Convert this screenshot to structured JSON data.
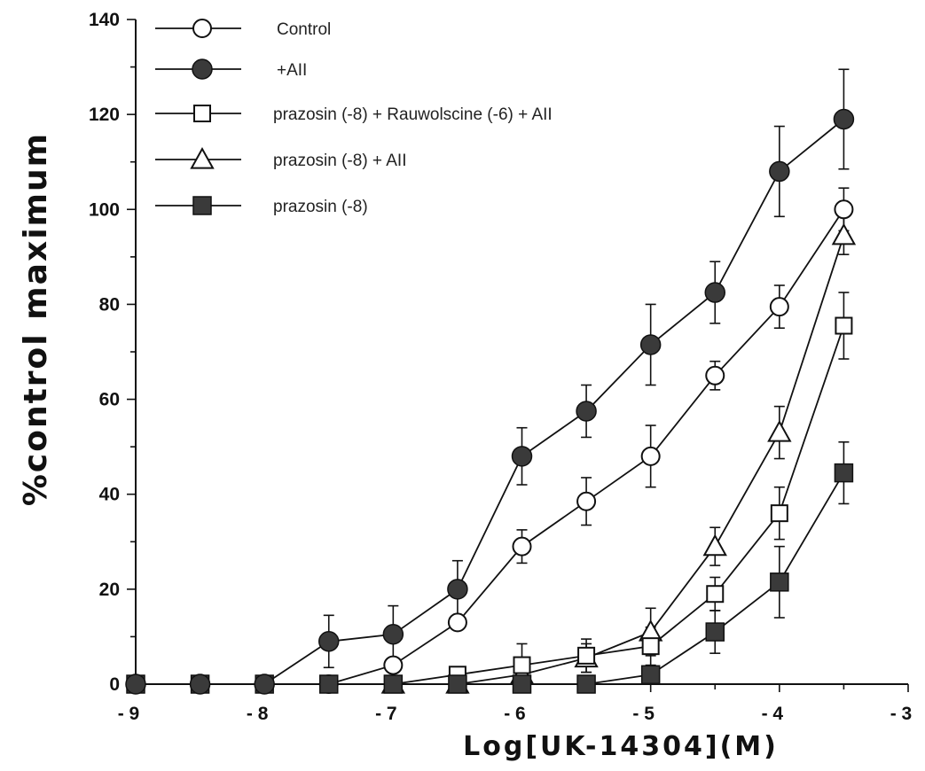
{
  "chart_data": {
    "type": "line",
    "title": "",
    "xlabel": "Log[UK-14304](M)",
    "ylabel": "%control maximum",
    "xlim": [
      -9,
      -3
    ],
    "ylim": [
      0,
      140
    ],
    "x_ticks": [
      -9,
      -8,
      -7,
      -6,
      -5,
      -4,
      -3
    ],
    "x_tick_labels": [
      "- 9",
      "- 8",
      "- 7",
      "- 6",
      "- 5",
      "- 4",
      "- 3"
    ],
    "y_ticks": [
      0,
      20,
      40,
      60,
      80,
      100,
      120,
      140
    ],
    "y_tick_labels": [
      "0",
      "20",
      "40",
      "60",
      "80",
      "100",
      "120",
      "140"
    ],
    "legend_position": "top-left",
    "grid": false,
    "series": [
      {
        "name": "Control",
        "marker": "circle-open",
        "x": [
          -9,
          -8.5,
          -8,
          -7.5,
          -7,
          -6.5,
          -6,
          -5.5,
          -5,
          -4.5,
          -4,
          -3.5
        ],
        "y": [
          0,
          0,
          0,
          0,
          4,
          13,
          29,
          38.5,
          48,
          65,
          79.5,
          100
        ],
        "err": [
          0,
          0,
          0,
          0,
          1.5,
          0,
          3.5,
          5,
          6.5,
          3,
          4.5,
          4.5
        ]
      },
      {
        "name": "+AII",
        "marker": "circle-filled",
        "x": [
          -9,
          -8.5,
          -8,
          -7.5,
          -7,
          -6.5,
          -6,
          -5.5,
          -5,
          -4.5,
          -4,
          -3.5
        ],
        "y": [
          0,
          0,
          0,
          9,
          10.5,
          20,
          48,
          57.5,
          71.5,
          82.5,
          108,
          119
        ],
        "err": [
          0,
          0,
          0,
          5.5,
          6,
          6,
          6,
          5.5,
          8.5,
          6.5,
          9.5,
          10.5
        ]
      },
      {
        "name": "prazosin (-8) + Rauwolscine (-6) + AII",
        "marker": "square-open",
        "x": [
          -7.5,
          -7,
          -6.5,
          -6,
          -5.5,
          -5,
          -4.5,
          -4,
          -3.5
        ],
        "y": [
          0,
          0,
          2,
          4,
          6,
          8,
          19,
          36,
          75.5
        ],
        "err": [
          0,
          0,
          0,
          4.5,
          3.5,
          4,
          3.5,
          5.5,
          7
        ]
      },
      {
        "name": "prazosin (-8) + AII",
        "marker": "triangle-open",
        "x": [
          -7,
          -6.5,
          -6,
          -5.5,
          -5,
          -4.5,
          -4,
          -3.5
        ],
        "y": [
          0,
          0,
          2,
          5.5,
          11,
          29,
          53,
          94.5
        ],
        "err": [
          0,
          0,
          0,
          3,
          5,
          4,
          5.5,
          4
        ]
      },
      {
        "name": "prazosin (-8)",
        "marker": "square-filled",
        "x": [
          -9,
          -8.5,
          -8,
          -7.5,
          -7,
          -6.5,
          -6,
          -5.5,
          -5,
          -4.5,
          -4,
          -3.5
        ],
        "y": [
          0,
          0,
          0,
          0,
          0,
          0,
          0,
          0,
          2,
          11,
          21.5,
          44.5
        ],
        "err": [
          0,
          0,
          0,
          0,
          0,
          0,
          0,
          0,
          0,
          4.5,
          7.5,
          6.5
        ]
      }
    ]
  }
}
